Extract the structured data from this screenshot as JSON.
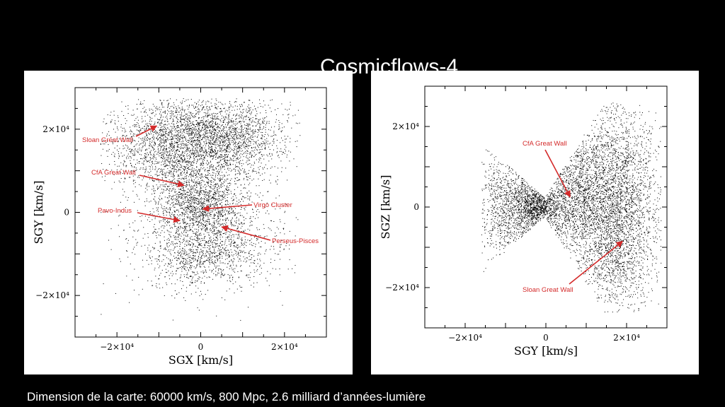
{
  "slide": {
    "title": "Cosmicflows-4",
    "caption": "Dimension de la carte: 60000 km/s, 800 Mpc, 2.6 milliard d’années-lumière"
  },
  "colors": {
    "background": "#000000",
    "panel": "#ffffff",
    "points": "#000000",
    "annotation": "#d42a2a"
  },
  "chart_data": [
    {
      "type": "scatter",
      "xlabel": "SGX [km/s]",
      "ylabel": "SGY [km/s]",
      "xlim": [
        -30000,
        30000
      ],
      "ylim": [
        -30000,
        30000
      ],
      "xticks": [
        {
          "value": -20000,
          "label": "−2×10⁴"
        },
        {
          "value": 0,
          "label": "0"
        },
        {
          "value": 20000,
          "label": "2×10⁴"
        }
      ],
      "yticks": [
        {
          "value": -20000,
          "label": "−2×10⁴"
        },
        {
          "value": 0,
          "label": "0"
        },
        {
          "value": 20000,
          "label": "2×10⁴"
        }
      ],
      "annotations": [
        {
          "label": "Sloan Great Wall",
          "point": [
            -10500,
            20800
          ]
        },
        {
          "label": "CfA Great Wall",
          "point": [
            -4000,
            6500
          ]
        },
        {
          "label": "Virgo Cluster",
          "point": [
            500,
            800
          ]
        },
        {
          "label": "Pavo-Indus",
          "point": [
            -5000,
            -2000
          ]
        },
        {
          "label": "Perseus-Pisces",
          "point": [
            5000,
            -3500
          ]
        }
      ]
    },
    {
      "type": "scatter",
      "xlabel": "SGY [km/s]",
      "ylabel": "SGZ [km/s]",
      "xlim": [
        -30000,
        30000
      ],
      "ylim": [
        -30000,
        30000
      ],
      "xticks": [
        {
          "value": -20000,
          "label": "−2×10⁴"
        },
        {
          "value": 0,
          "label": "0"
        },
        {
          "value": 20000,
          "label": "2×10⁴"
        }
      ],
      "yticks": [
        {
          "value": -20000,
          "label": "−2×10⁴"
        },
        {
          "value": 0,
          "label": "0"
        },
        {
          "value": 20000,
          "label": "2×10⁴"
        }
      ],
      "annotations": [
        {
          "label": "CfA Great Wall",
          "point": [
            6000,
            2500
          ]
        },
        {
          "label": "Sloan Great Wall",
          "point": [
            19000,
            -8500
          ]
        }
      ]
    }
  ]
}
